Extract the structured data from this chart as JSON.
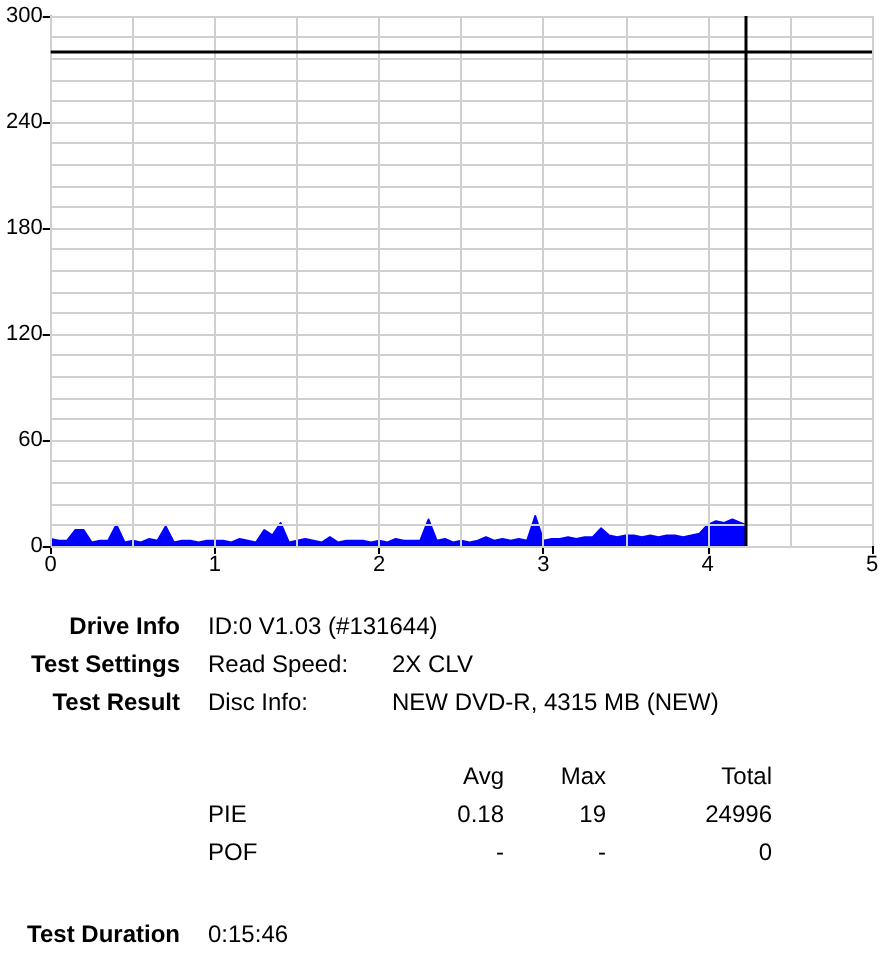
{
  "chart_data": {
    "type": "area",
    "x": [
      0,
      0.05,
      0.1,
      0.15,
      0.2,
      0.25,
      0.3,
      0.35,
      0.4,
      0.45,
      0.5,
      0.55,
      0.6,
      0.65,
      0.7,
      0.75,
      0.8,
      0.85,
      0.9,
      0.95,
      1,
      1.05,
      1.1,
      1.15,
      1.2,
      1.25,
      1.3,
      1.35,
      1.4,
      1.45,
      1.5,
      1.55,
      1.6,
      1.65,
      1.7,
      1.75,
      1.8,
      1.85,
      1.9,
      1.95,
      2,
      2.05,
      2.1,
      2.15,
      2.2,
      2.25,
      2.3,
      2.35,
      2.4,
      2.45,
      2.5,
      2.55,
      2.6,
      2.65,
      2.7,
      2.75,
      2.8,
      2.85,
      2.9,
      2.95,
      3,
      3.05,
      3.1,
      3.15,
      3.2,
      3.25,
      3.3,
      3.35,
      3.4,
      3.45,
      3.5,
      3.55,
      3.6,
      3.65,
      3.7,
      3.75,
      3.8,
      3.85,
      3.9,
      3.95,
      4,
      4.05,
      4.1,
      4.15,
      4.2,
      4.23
    ],
    "series": [
      {
        "color": "#0000ff",
        "values": [
          4,
          3,
          3,
          9,
          9,
          2,
          3,
          3,
          12,
          2,
          3,
          2,
          4,
          3,
          11,
          2,
          3,
          3,
          2,
          3,
          3,
          3,
          2,
          4,
          3,
          2,
          9,
          6,
          13,
          2,
          3,
          4,
          3,
          2,
          5,
          2,
          3,
          3,
          3,
          2,
          3,
          2,
          4,
          3,
          3,
          3,
          15,
          3,
          4,
          2,
          3,
          2,
          3,
          5,
          3,
          4,
          3,
          4,
          3,
          17,
          3,
          4,
          4,
          5,
          4,
          5,
          5,
          10,
          6,
          5,
          6,
          6,
          5,
          6,
          5,
          6,
          6,
          5,
          6,
          7,
          12,
          14,
          13,
          15,
          13,
          12
        ]
      }
    ],
    "xlim": [
      0,
      5
    ],
    "xticks": [
      0,
      {
        "value": 0.5,
        "label": null
      },
      1,
      {
        "value": 1.5,
        "label": null
      },
      2,
      {
        "value": 2.5,
        "label": null
      },
      3,
      {
        "value": 3.5,
        "label": null
      },
      4,
      {
        "value": 4.5,
        "label": null
      },
      5
    ],
    "ylim": [
      0,
      300
    ],
    "yticks": [
      0,
      {
        "value": 12,
        "label": null
      },
      {
        "value": 24,
        "label": null
      },
      {
        "value": 36,
        "label": null
      },
      {
        "value": 48,
        "label": null
      },
      60,
      {
        "value": 72,
        "label": null
      },
      {
        "value": 84,
        "label": null
      },
      {
        "value": 96,
        "label": null
      },
      {
        "value": 108,
        "label": null
      },
      120,
      {
        "value": 132,
        "label": null
      },
      {
        "value": 144,
        "label": null
      },
      {
        "value": 156,
        "label": null
      },
      {
        "value": 168,
        "label": null
      },
      180,
      {
        "value": 192,
        "label": null
      },
      {
        "value": 204,
        "label": null
      },
      {
        "value": 216,
        "label": null
      },
      {
        "value": 228,
        "label": null
      },
      240,
      {
        "value": 252,
        "label": null
      },
      {
        "value": 264,
        "label": null
      },
      {
        "value": 276,
        "label": null
      },
      {
        "value": 288,
        "label": null
      },
      300
    ],
    "grid": true,
    "marker": "none",
    "ref_lines": [
      {
        "axis": "y",
        "value": 280,
        "color": "#000000"
      },
      {
        "axis": "x",
        "value": 4.23,
        "color": "#000000"
      }
    ],
    "annotations": [
      "Drive Info",
      "ID:0 V1.03 (#131644)",
      "Test Settings",
      "Read Speed:",
      "2X CLV",
      "Test Result",
      "Disc Info:",
      "NEW DVD-R, 4315 MB (NEW)",
      "Avg",
      "Max",
      "Total",
      "PIE",
      "0.18",
      "19",
      "24996",
      "POF",
      "-",
      "-",
      "0",
      "Test Duration",
      "0:15:46"
    ]
  }
}
